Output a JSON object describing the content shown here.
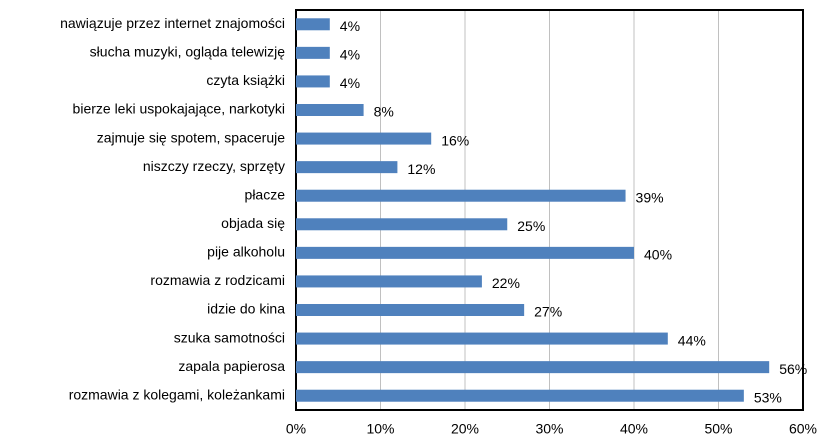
{
  "chart_data": {
    "type": "bar",
    "orientation": "horizontal",
    "categories": [
      "nawiązuje przez internet znajomości",
      "słucha muzyki,  ogląda telewizję",
      "czyta książki",
      "bierze leki uspokajające, narkotyki",
      "zajmuje się spotem, spaceruje",
      "niszczy rzeczy, sprzęty",
      "płacze",
      "objada się",
      "pije alkoholu",
      "rozmawia z rodzicami",
      "idzie do kina",
      "szuka samotności",
      "zapala papierosa",
      "rozmawia z kolegami, koleżankami"
    ],
    "values": [
      4,
      4,
      4,
      8,
      16,
      12,
      39,
      25,
      40,
      22,
      27,
      44,
      56,
      53
    ],
    "value_labels": [
      "4%",
      "4%",
      "4%",
      "8%",
      "16%",
      "12%",
      "39%",
      "25%",
      "40%",
      "22%",
      "27%",
      "44%",
      "56%",
      "53%"
    ],
    "color": "#4f81bd",
    "xlim": [
      0,
      60
    ],
    "xticks": [
      {
        "value": 0,
        "label": "0%"
      },
      {
        "value": 10,
        "label": "10%"
      },
      {
        "value": 20,
        "label": "20%"
      },
      {
        "value": 30,
        "label": "30%"
      },
      {
        "value": 40,
        "label": "40%"
      },
      {
        "value": 50,
        "label": "50%"
      },
      {
        "value": 60,
        "label": "60%"
      }
    ],
    "grid": true
  }
}
